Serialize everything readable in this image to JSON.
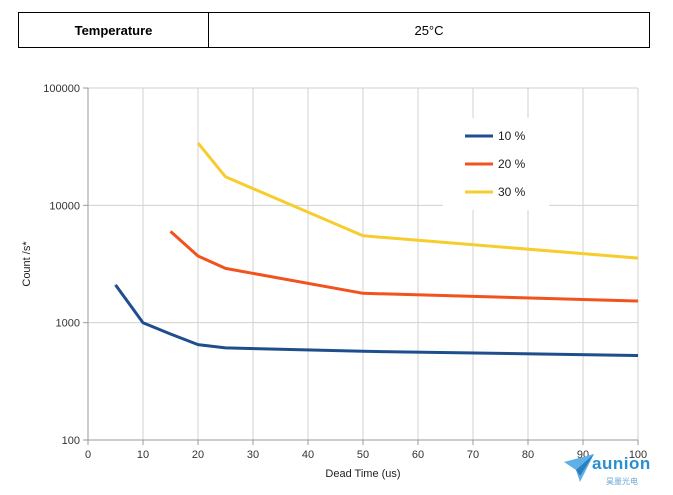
{
  "header": {
    "label": "Temperature",
    "value": "25°C"
  },
  "chart_data": {
    "type": "line",
    "xlabel": "Dead Time (us)",
    "ylabel": "Count /s*",
    "xlim": [
      0,
      100
    ],
    "ylim": [
      100,
      100000
    ],
    "yscale": "log",
    "grid": true,
    "x_ticks": [
      "0",
      "10",
      "20",
      "30",
      "40",
      "50",
      "60",
      "70",
      "80",
      "90",
      "100"
    ],
    "y_ticks": [
      "100",
      "1000",
      "10000",
      "100000"
    ],
    "legend_position": "top-right",
    "series": [
      {
        "name": "10 %",
        "color": "#1f4e8c",
        "x": [
          5,
          10,
          15,
          20,
          25,
          50,
          100
        ],
        "y": [
          2100,
          1000,
          800,
          650,
          610,
          570,
          525
        ]
      },
      {
        "name": "20 %",
        "color": "#f2521b",
        "x": [
          15,
          20,
          25,
          50,
          100
        ],
        "y": [
          6000,
          3700,
          2900,
          1780,
          1530
        ]
      },
      {
        "name": "30 %",
        "color": "#f7cd2e",
        "x": [
          20,
          25,
          50,
          100
        ],
        "y": [
          34000,
          17500,
          5500,
          3550
        ]
      }
    ]
  },
  "logo": {
    "text": "aunion",
    "subtext": "昊量光电"
  }
}
